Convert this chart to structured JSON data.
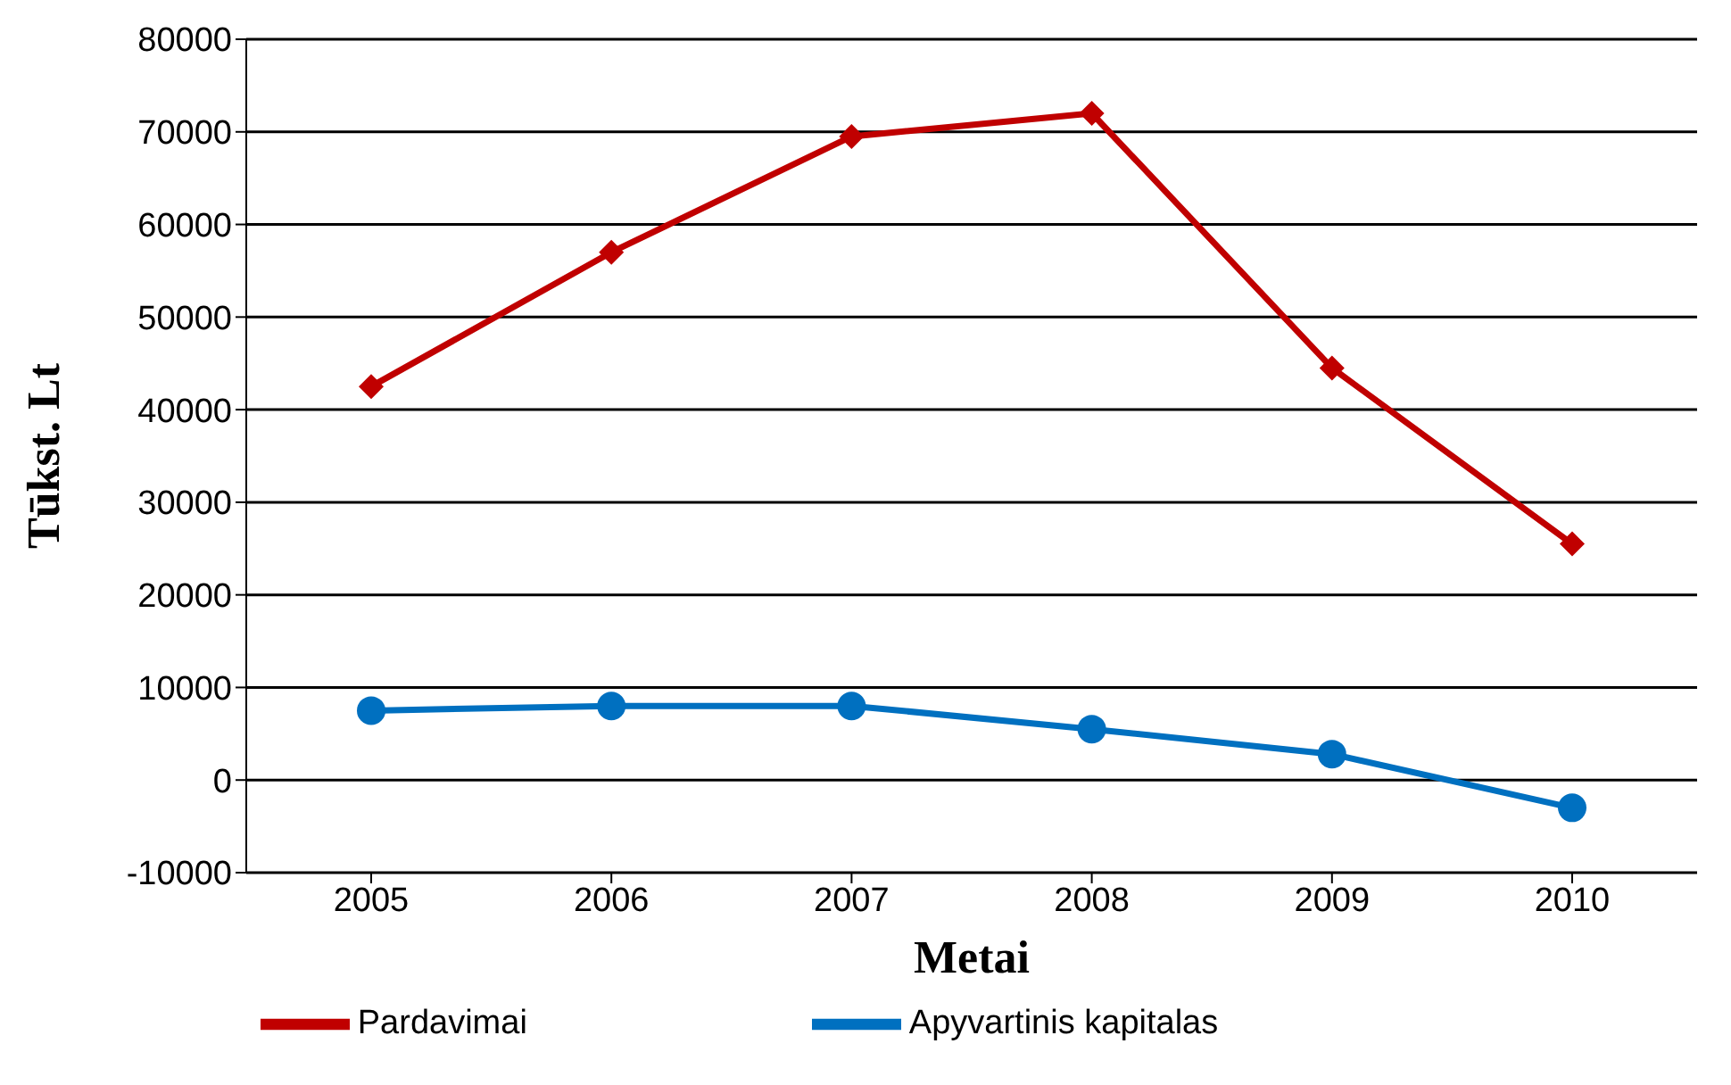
{
  "chart_data": {
    "type": "line",
    "xlabel": "Metai",
    "ylabel": "Tūkst. Lt",
    "categories": [
      "2005",
      "2006",
      "2007",
      "2008",
      "2009",
      "2010"
    ],
    "series": [
      {
        "name": "Pardavimai",
        "color": "#c00000",
        "marker": "diamond",
        "values": [
          42500,
          57000,
          69500,
          72000,
          44500,
          25500
        ]
      },
      {
        "name": "Apyvartinis kapitalas",
        "color": "#0070c0",
        "marker": "circle",
        "values": [
          7500,
          8000,
          8000,
          5500,
          2800,
          -3000
        ]
      }
    ],
    "ylim": [
      -10000,
      80000
    ],
    "yticks": [
      -10000,
      0,
      10000,
      20000,
      30000,
      40000,
      50000,
      60000,
      70000,
      80000
    ],
    "grid": "y",
    "legend": "bottom"
  }
}
